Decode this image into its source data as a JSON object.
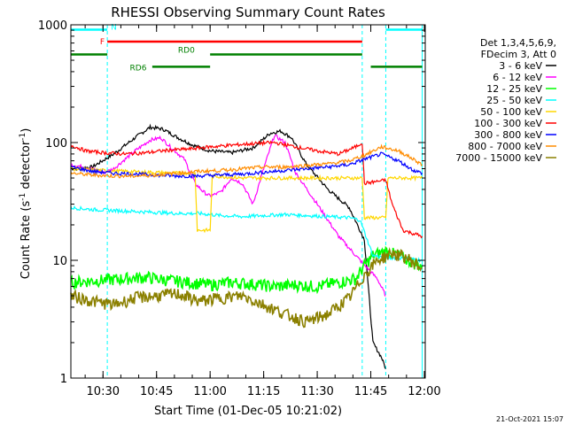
{
  "chart_data": {
    "type": "line",
    "title": "RHESSI Observing Summary Count Rates",
    "xlabel": "Start Time (01-Dec-05 10:21:02)",
    "ylabel_main": "Count Rate (s",
    "ylabel_sup1": "-1",
    "ylabel_mid": " detector",
    "ylabel_sup2": "-1",
    "ylabel_end": ")",
    "x_range_min": [
      10.35,
      11.99
    ],
    "y_range": [
      1,
      1000
    ],
    "y_scale": "log",
    "x_ticks": [
      {
        "label": "10:30",
        "t": 10.5
      },
      {
        "label": "10:45",
        "t": 10.75
      },
      {
        "label": "11:00",
        "t": 11.0
      },
      {
        "label": "11:15",
        "t": 11.25
      },
      {
        "label": "11:30",
        "t": 11.5
      },
      {
        "label": "11:45",
        "t": 11.75
      },
      {
        "label": "12:00",
        "t": 12.0
      }
    ],
    "y_ticks": [
      {
        "label": "1",
        "v": 1
      },
      {
        "label": "10",
        "v": 10
      },
      {
        "label": "100",
        "v": 100
      },
      {
        "label": "1000",
        "v": 1000
      }
    ],
    "legend_header": [
      "Det 1,3,4,5,6,9,",
      "FDecim 3, Att 0"
    ],
    "legend_placement": "right",
    "footer_date": "21-Oct-2021 15:07",
    "flags": [
      {
        "label": "N",
        "color": "#00ffff",
        "y": 910,
        "segments": [
          [
            10.35,
            10.52
          ],
          [
            11.82,
            11.99
          ]
        ]
      },
      {
        "label": "F",
        "color": "#ff0000",
        "y": 720,
        "segments": [
          [
            10.52,
            11.71
          ]
        ]
      },
      {
        "label": "RD0",
        "color": "#008000",
        "y": 560,
        "segments": [
          [
            10.35,
            10.52
          ],
          [
            11.0,
            11.71
          ]
        ]
      },
      {
        "label": "RD6",
        "color": "#008000",
        "y": 440,
        "segments": [
          [
            10.73,
            11.0
          ],
          [
            11.75,
            11.99
          ]
        ]
      }
    ],
    "night_boundaries_t": [
      10.35,
      10.52,
      11.71,
      11.82,
      11.99
    ],
    "series": [
      {
        "name": "3 - 6 keV",
        "color": "#000000",
        "points": [
          [
            10.35,
            60
          ],
          [
            10.45,
            62
          ],
          [
            10.55,
            80
          ],
          [
            10.65,
            110
          ],
          [
            10.72,
            135
          ],
          [
            10.78,
            130
          ],
          [
            10.85,
            110
          ],
          [
            10.92,
            95
          ],
          [
            11.0,
            85
          ],
          [
            11.1,
            82
          ],
          [
            11.2,
            90
          ],
          [
            11.28,
            120
          ],
          [
            11.33,
            125
          ],
          [
            11.38,
            110
          ],
          [
            11.45,
            65
          ],
          [
            11.55,
            40
          ],
          [
            11.65,
            28
          ],
          [
            11.72,
            15
          ],
          [
            11.76,
            2
          ],
          [
            11.8,
            1.5
          ],
          [
            11.82,
            1.2
          ]
        ]
      },
      {
        "name": "6 - 12 keV",
        "color": "#ff00ff",
        "points": [
          [
            10.35,
            65
          ],
          [
            10.45,
            60
          ],
          [
            10.5,
            55
          ],
          [
            10.55,
            60
          ],
          [
            10.65,
            85
          ],
          [
            10.72,
            105
          ],
          [
            10.77,
            110
          ],
          [
            10.82,
            90
          ],
          [
            10.88,
            72
          ],
          [
            10.93,
            45
          ],
          [
            10.97,
            38
          ],
          [
            11.0,
            35
          ],
          [
            11.05,
            38
          ],
          [
            11.1,
            50
          ],
          [
            11.15,
            45
          ],
          [
            11.2,
            30
          ],
          [
            11.25,
            60
          ],
          [
            11.3,
            115
          ],
          [
            11.35,
            100
          ],
          [
            11.4,
            55
          ],
          [
            11.5,
            30
          ],
          [
            11.6,
            16
          ],
          [
            11.7,
            10
          ],
          [
            11.78,
            7
          ],
          [
            11.82,
            5
          ]
        ]
      },
      {
        "name": "12 - 25 keV",
        "color": "#00ff00",
        "points": [
          [
            10.35,
            6.5
          ],
          [
            10.5,
            6.8
          ],
          [
            10.6,
            7.0
          ],
          [
            10.7,
            7.2
          ],
          [
            10.8,
            6.8
          ],
          [
            10.9,
            6.5
          ],
          [
            11.0,
            6.2
          ],
          [
            11.1,
            6.5
          ],
          [
            11.2,
            6.3
          ],
          [
            11.3,
            6.0
          ],
          [
            11.4,
            6.2
          ],
          [
            11.5,
            6.0
          ],
          [
            11.6,
            6.5
          ],
          [
            11.68,
            7.0
          ],
          [
            11.72,
            9.0
          ],
          [
            11.76,
            11.0
          ],
          [
            11.82,
            12.0
          ],
          [
            11.88,
            11.0
          ],
          [
            11.95,
            9.5
          ],
          [
            11.99,
            9.0
          ]
        ]
      },
      {
        "name": "25 - 50 keV",
        "color": "#00ffff",
        "points": [
          [
            10.35,
            28
          ],
          [
            10.45,
            27
          ],
          [
            10.55,
            26.5
          ],
          [
            10.65,
            26
          ],
          [
            10.75,
            25.5
          ],
          [
            10.85,
            25
          ],
          [
            10.95,
            25
          ],
          [
            11.05,
            24
          ],
          [
            11.15,
            23.5
          ],
          [
            11.25,
            24
          ],
          [
            11.35,
            24.5
          ],
          [
            11.45,
            24
          ],
          [
            11.55,
            23.5
          ],
          [
            11.65,
            23
          ],
          [
            11.7,
            22
          ],
          [
            11.76,
            11
          ],
          [
            11.82,
            10.5
          ],
          [
            11.88,
            10.5
          ],
          [
            11.95,
            10.2
          ],
          [
            11.99,
            10
          ]
        ]
      },
      {
        "name": "50 - 100 keV",
        "color": "#ffd700",
        "points": [
          [
            10.35,
            60
          ],
          [
            10.5,
            58
          ],
          [
            10.6,
            57
          ],
          [
            10.7,
            56
          ],
          [
            10.85,
            55
          ],
          [
            10.93,
            55
          ],
          [
            10.94,
            18
          ],
          [
            11.0,
            18
          ],
          [
            11.01,
            52
          ],
          [
            11.15,
            50
          ],
          [
            11.3,
            50
          ],
          [
            11.45,
            50
          ],
          [
            11.55,
            50
          ],
          [
            11.65,
            50
          ],
          [
            11.71,
            50
          ],
          [
            11.72,
            23
          ],
          [
            11.82,
            23
          ],
          [
            11.83,
            50
          ],
          [
            11.9,
            50
          ],
          [
            11.99,
            50
          ]
        ]
      },
      {
        "name": "100 - 300 keV",
        "color": "#ff0000",
        "points": [
          [
            10.35,
            95
          ],
          [
            10.42,
            85
          ],
          [
            10.5,
            82
          ],
          [
            10.6,
            80
          ],
          [
            10.7,
            82
          ],
          [
            10.8,
            86
          ],
          [
            10.9,
            88
          ],
          [
            10.95,
            90
          ],
          [
            11.0,
            92
          ],
          [
            11.1,
            95
          ],
          [
            11.2,
            98
          ],
          [
            11.3,
            100
          ],
          [
            11.4,
            92
          ],
          [
            11.5,
            85
          ],
          [
            11.6,
            80
          ],
          [
            11.68,
            92
          ],
          [
            11.71,
            100
          ],
          [
            11.72,
            45
          ],
          [
            11.82,
            48
          ],
          [
            11.85,
            30
          ],
          [
            11.9,
            18
          ],
          [
            11.99,
            16
          ]
        ]
      },
      {
        "name": "300 - 800 keV",
        "color": "#0000ff",
        "points": [
          [
            10.35,
            62
          ],
          [
            10.45,
            57
          ],
          [
            10.55,
            55
          ],
          [
            10.65,
            54
          ],
          [
            10.75,
            53
          ],
          [
            10.85,
            52
          ],
          [
            10.95,
            52
          ],
          [
            11.05,
            53
          ],
          [
            11.15,
            54
          ],
          [
            11.25,
            56
          ],
          [
            11.35,
            58
          ],
          [
            11.45,
            60
          ],
          [
            11.55,
            62
          ],
          [
            11.65,
            65
          ],
          [
            11.72,
            72
          ],
          [
            11.8,
            80
          ],
          [
            11.88,
            70
          ],
          [
            11.95,
            58
          ],
          [
            11.99,
            55
          ]
        ]
      },
      {
        "name": "800 - 7000 keV",
        "color": "#ff8c00",
        "points": [
          [
            10.35,
            55
          ],
          [
            10.45,
            53
          ],
          [
            10.55,
            52
          ],
          [
            10.65,
            52
          ],
          [
            10.75,
            53
          ],
          [
            10.85,
            55
          ],
          [
            10.95,
            57
          ],
          [
            11.05,
            58
          ],
          [
            11.15,
            60
          ],
          [
            11.25,
            62
          ],
          [
            11.35,
            62
          ],
          [
            11.45,
            64
          ],
          [
            11.55,
            66
          ],
          [
            11.65,
            70
          ],
          [
            11.72,
            78
          ],
          [
            11.8,
            92
          ],
          [
            11.88,
            85
          ],
          [
            11.95,
            72
          ],
          [
            11.99,
            65
          ]
        ]
      },
      {
        "name": "7000 - 15000 keV",
        "color": "#8b8000",
        "points": [
          [
            10.35,
            5
          ],
          [
            10.45,
            4.5
          ],
          [
            10.55,
            4.2
          ],
          [
            10.65,
            4.8
          ],
          [
            10.75,
            5.0
          ],
          [
            10.85,
            5.2
          ],
          [
            10.95,
            4.5
          ],
          [
            11.05,
            4.8
          ],
          [
            11.15,
            5.0
          ],
          [
            11.25,
            4.2
          ],
          [
            11.35,
            3.5
          ],
          [
            11.45,
            3.0
          ],
          [
            11.55,
            3.5
          ],
          [
            11.65,
            4.8
          ],
          [
            11.72,
            7.5
          ],
          [
            11.78,
            10.0
          ],
          [
            11.85,
            11.5
          ],
          [
            11.92,
            10.5
          ],
          [
            11.99,
            8.5
          ]
        ]
      }
    ]
  }
}
